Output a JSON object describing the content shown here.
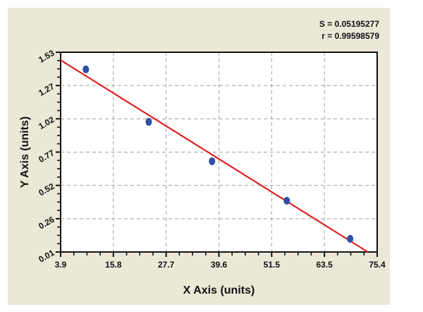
{
  "stats": {
    "s_label": "S = 0.05195277",
    "r_label": "r = 0.99598579"
  },
  "colors": {
    "background": "#ebe8d8",
    "plot_bg": "#ffffff",
    "points": "#2f4fa8",
    "fit_line": "#e02020",
    "grid": "#a0a0a0"
  },
  "chart_data": {
    "type": "scatter",
    "title": "",
    "xlabel": "X Axis (units)",
    "ylabel": "Y Axis (units)",
    "xlim": [
      3.9,
      75.4
    ],
    "ylim": [
      0.01,
      1.53
    ],
    "x_ticks": [
      "3.9",
      "15.8",
      "27.7",
      "39.6",
      "51.5",
      "63.5",
      "75.4"
    ],
    "y_ticks": [
      "0.01",
      "0.26",
      "0.52",
      "0.77",
      "1.02",
      "1.27",
      "1.53"
    ],
    "grid": "dashed",
    "annotations": [
      "S = 0.05195277",
      "r = 0.99598579"
    ],
    "series": [
      {
        "name": "data points",
        "type": "scatter",
        "x": [
          9.6,
          23.8,
          38.1,
          55.0,
          69.3
        ],
        "y": [
          1.4,
          1.0,
          0.7,
          0.4,
          0.11
        ]
      },
      {
        "name": "linear fit",
        "type": "line",
        "x": [
          3.9,
          73.3
        ],
        "y": [
          1.47,
          0.01
        ]
      }
    ]
  }
}
